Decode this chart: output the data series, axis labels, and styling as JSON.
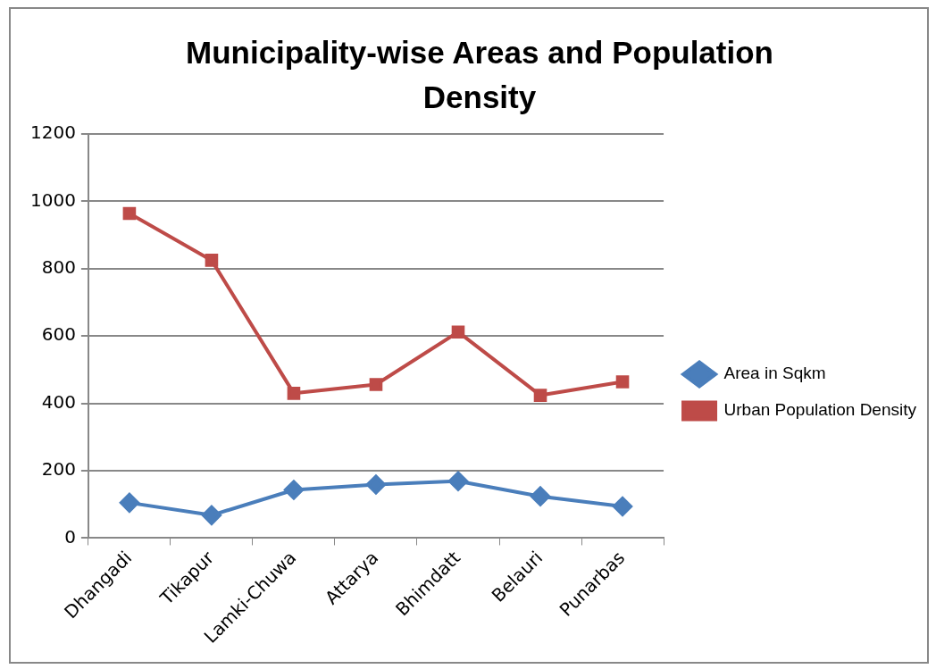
{
  "chart_data": {
    "type": "line",
    "title": "Municipality-wise Areas and Population Density",
    "categories": [
      "Dhangadi",
      "Tikapur",
      "Lamki-Chuwa",
      "Attarya",
      "Bhimdatt",
      "Belauri",
      "Punarbas"
    ],
    "series": [
      {
        "name": "Area in Sqkm",
        "color": "#4a7ebb",
        "marker": "diamond",
        "values": [
          105,
          68,
          143,
          159,
          169,
          124,
          94
        ]
      },
      {
        "name": "Urban Population Density",
        "color": "#be4b48",
        "marker": "square",
        "values": [
          964,
          825,
          430,
          456,
          612,
          424,
          464
        ]
      }
    ],
    "ylim": [
      0,
      1200
    ],
    "yticks": [
      0,
      200,
      400,
      600,
      800,
      1000,
      1200
    ],
    "grid": "y",
    "legend": "right",
    "line_style": "solid"
  }
}
